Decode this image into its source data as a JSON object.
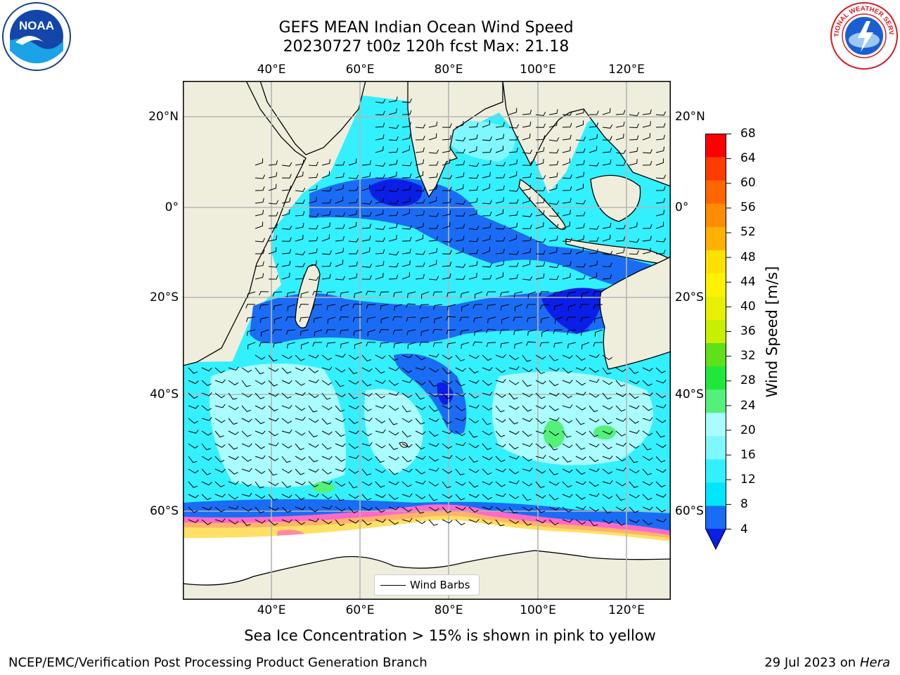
{
  "title": {
    "line1": "GEFS MEAN Indian Ocean Wind Speed",
    "line2": "20230727 t00z 120h fcst   Max: 21.18"
  },
  "logos": {
    "noaa_text": "NOAA",
    "nws_text": "NATIONAL WEATHER SERVICE"
  },
  "map": {
    "lon_ticks": [
      "40°E",
      "60°E",
      "80°E",
      "100°E",
      "120°E"
    ],
    "lat_ticks": [
      "20°N",
      "0°",
      "20°S",
      "40°S",
      "60°S"
    ],
    "legend_label": "Wind Barbs",
    "colors": {
      "land": "#efeedd",
      "ice_free": "#ffffff",
      "grid": "#b5b5b5",
      "sea_ice": [
        "#ff69c8",
        "#ff8aa0",
        "#ffb36b",
        "#ffe066"
      ]
    }
  },
  "colorbar": {
    "label": "Wind Speed [m/s]",
    "ticks": [
      "68",
      "64",
      "60",
      "56",
      "52",
      "48",
      "44",
      "40",
      "36",
      "32",
      "28",
      "24",
      "20",
      "16",
      "12",
      "8",
      "4"
    ],
    "bins": [
      {
        "range": "4-8",
        "color": "#1a6cf5"
      },
      {
        "range": "8-12",
        "color": "#00e6ff"
      },
      {
        "range": "12-16",
        "color": "#33f0ff"
      },
      {
        "range": "16-18",
        "color": "#7ff7ff"
      },
      {
        "range": "18-20",
        "color": "#aafdff"
      },
      {
        "range": "20-24",
        "color": "#55f07a"
      },
      {
        "range": "24-28",
        "color": "#1fe83a"
      },
      {
        "range": "28-32",
        "color": "#5ee01a"
      },
      {
        "range": "32-36",
        "color": "#c8ee00"
      },
      {
        "range": "36-40",
        "color": "#e6f000"
      },
      {
        "range": "40-44",
        "color": "#fff200"
      },
      {
        "range": "44-48",
        "color": "#ffe000"
      },
      {
        "range": "48-52",
        "color": "#ffb000"
      },
      {
        "range": "52-56",
        "color": "#ff8c00"
      },
      {
        "range": "56-60",
        "color": "#ff6600"
      },
      {
        "range": "60-64",
        "color": "#ff3c00"
      },
      {
        "range": "64-68",
        "color": "#ff0000"
      }
    ],
    "under_color": "#0a1ee6"
  },
  "footer": {
    "caption": "Sea Ice Concentration > 15% is shown in pink to yellow",
    "credit": "NCEP/EMC/Verification Post Processing Product Generation Branch",
    "date": "29 Jul 2023 on ",
    "host": "Hera"
  }
}
